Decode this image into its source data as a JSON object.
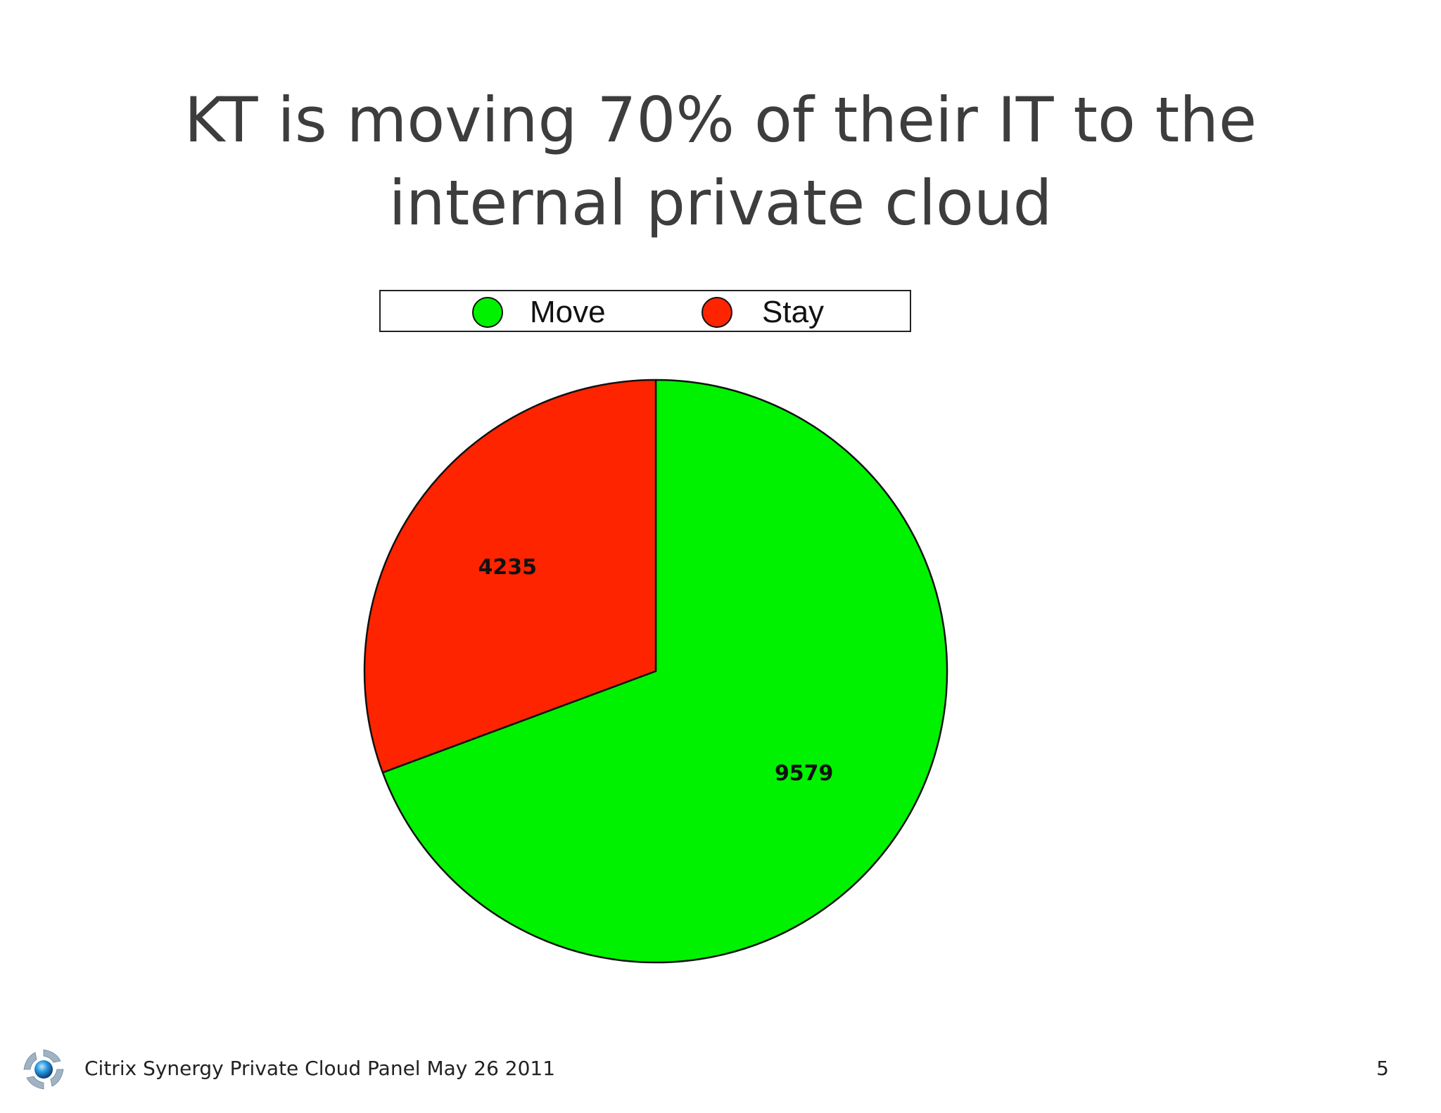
{
  "slide": {
    "title_line1": "KT is moving 70% of their IT to the",
    "title_line2": "internal private cloud",
    "footer": "Citrix Synergy Private Cloud Panel May 26 2011",
    "page_number": "5"
  },
  "icons": {
    "footer_logo": "citrix-logo-icon"
  },
  "chart_data": {
    "type": "pie",
    "title": "",
    "legend_position": "top",
    "slices": [
      {
        "name": "Move",
        "value": 9579,
        "label": "9579",
        "color": "#00f200"
      },
      {
        "name": "Stay",
        "value": 4235,
        "label": "4235",
        "color": "#ff2400"
      }
    ],
    "start": "12 o'clock",
    "direction": "clockwise"
  }
}
